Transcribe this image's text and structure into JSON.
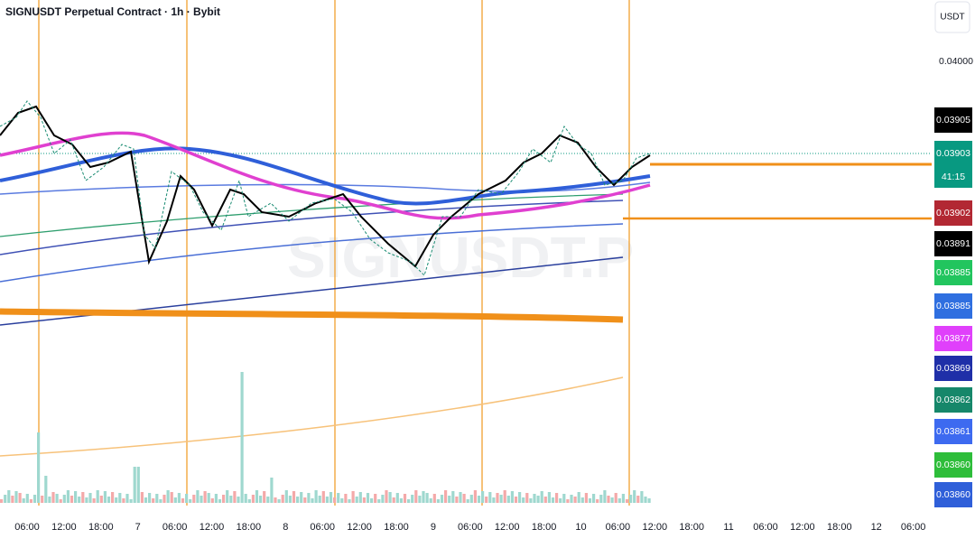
{
  "header": {
    "title": "SIGNUSDT Perpetual Contract · 1h · Bybit",
    "currency": "USDT",
    "watermark": "SIGNUSDT.P"
  },
  "price_scale": {
    "ticks": [
      "0.04000"
    ],
    "labels": [
      {
        "text": "0.03905",
        "color": "#000000"
      },
      {
        "text": "0.03903",
        "color": "#089981"
      },
      {
        "text": "41:15",
        "color": "#089981"
      },
      {
        "text": "0.03902",
        "color": "#b22833"
      },
      {
        "text": "0.03891",
        "color": "#000000"
      },
      {
        "text": "0.03885",
        "color": "#22c55e"
      },
      {
        "text": "0.03885",
        "color": "#2f6fe0"
      },
      {
        "text": "0.03877",
        "color": "#e040fb"
      },
      {
        "text": "0.03869",
        "color": "#1f2fa8"
      },
      {
        "text": "0.03862",
        "color": "#16876a"
      },
      {
        "text": "0.03861",
        "color": "#3d6af0"
      },
      {
        "text": "0.03860",
        "color": "#2ebd3a"
      },
      {
        "text": "0.03860",
        "color": "#2f5fd9"
      }
    ]
  },
  "time_axis": [
    "06:00",
    "12:00",
    "18:00",
    "7",
    "06:00",
    "12:00",
    "18:00",
    "8",
    "06:00",
    "12:00",
    "18:00",
    "9",
    "06:00",
    "12:00",
    "18:00",
    "10",
    "06:00",
    "12:00",
    "18:00",
    "11",
    "06:00",
    "12:00",
    "18:00",
    "12",
    "06:00"
  ]
}
